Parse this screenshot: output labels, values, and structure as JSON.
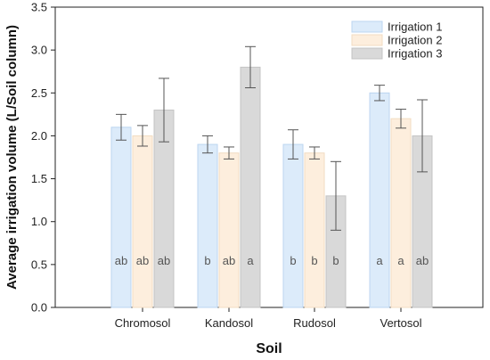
{
  "chart_data": {
    "type": "bar",
    "xlabel": "Soil",
    "ylabel": "Average irrigation volume (L/Soil column)",
    "ylim": [
      0,
      3.5
    ],
    "yticks": [
      "0.0",
      "0.5",
      "1.0",
      "1.5",
      "2.0",
      "2.5",
      "3.0",
      "3.5"
    ],
    "categories": [
      "Chromosol",
      "Kandosol",
      "Rudosol",
      "Vertosol"
    ],
    "legend_position": "top-right",
    "series": [
      {
        "name": "Irrigation 1",
        "color": "#dcebfa",
        "edge": "#bcd6f0",
        "values": [
          2.1,
          1.9,
          1.9,
          2.5
        ],
        "errors": [
          0.15,
          0.1,
          0.17,
          0.09
        ],
        "letters": [
          "ab",
          "b",
          "b",
          "a"
        ]
      },
      {
        "name": "Irrigation 2",
        "color": "#fdeedd",
        "edge": "#f2dcc2",
        "values": [
          2.0,
          1.8,
          1.8,
          2.2
        ],
        "errors": [
          0.12,
          0.07,
          0.07,
          0.11
        ],
        "letters": [
          "ab",
          "ab",
          "b",
          "a"
        ]
      },
      {
        "name": "Irrigation 3",
        "color": "#d9d9d9",
        "edge": "#c4c4c4",
        "values": [
          2.3,
          2.8,
          1.3,
          2.0
        ],
        "errors": [
          0.37,
          0.24,
          0.4,
          0.42
        ],
        "letters": [
          "ab",
          "a",
          "b",
          "ab"
        ]
      }
    ]
  }
}
